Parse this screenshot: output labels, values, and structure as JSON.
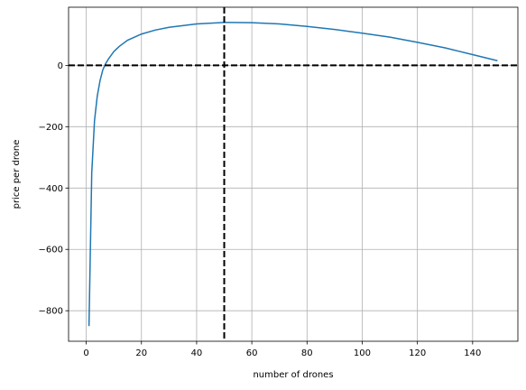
{
  "chart_data": {
    "type": "line",
    "xlabel": "number of drones",
    "ylabel": "price per drone",
    "x": [
      1,
      2,
      3,
      4,
      5,
      6,
      7,
      8,
      10,
      12,
      15,
      20,
      25,
      30,
      40,
      50,
      60,
      70,
      80,
      90,
      100,
      110,
      120,
      130,
      140,
      149
    ],
    "series": [
      {
        "color": "#1f77b4",
        "values": [
          -850,
          -350,
          -180,
          -100,
          -50,
          -15,
          5,
          20,
          45,
          62,
          82,
          102,
          115,
          124,
          135,
          140,
          139,
          135,
          127,
          117,
          105,
          92,
          75,
          57,
          35,
          15
        ]
      }
    ],
    "xlim": [
      -6.4,
      156.4
    ],
    "ylim": [
      -899.5,
      189.5
    ],
    "xticks": [
      0,
      20,
      40,
      60,
      80,
      100,
      120,
      140
    ],
    "yticks": [
      {
        "value": -800,
        "label": "−800"
      },
      {
        "value": -600,
        "label": "−600"
      },
      {
        "value": -400,
        "label": "−400"
      },
      {
        "value": -200,
        "label": "−200"
      },
      0
    ],
    "hlines": [
      0
    ],
    "vlines": [
      50
    ],
    "refline_color": "#000000",
    "grid": true
  }
}
